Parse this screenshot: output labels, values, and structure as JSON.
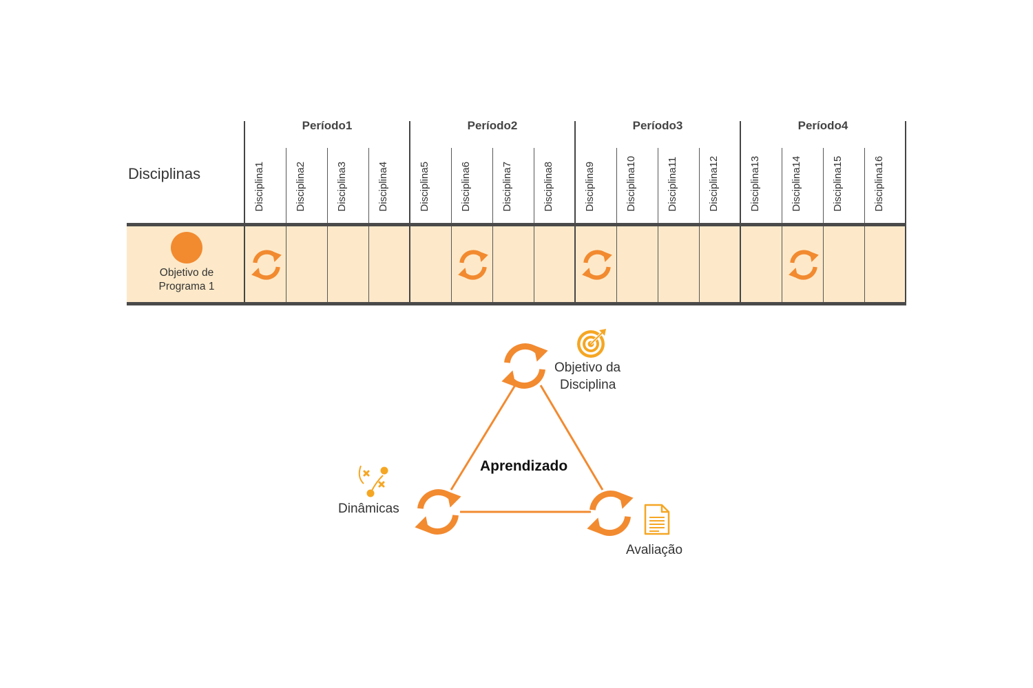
{
  "table": {
    "header_label": "Disciplinas",
    "periods": [
      "Período1",
      "Período2",
      "Período3",
      "Período4"
    ],
    "disciplines": [
      "Disciplina1",
      "Disciplina2",
      "Disciplina3",
      "Disciplina4",
      "Disciplina5",
      "Disciplina6",
      "Disciplina7",
      "Disciplina8",
      "Disciplina9",
      "Disciplina10",
      "Disciplina11",
      "Disciplina12",
      "Disciplina13",
      "Disciplina14",
      "Disciplina15",
      "Disciplina16"
    ],
    "row": {
      "label_line1": "Objetivo de",
      "label_line2": "Programa 1",
      "marked_disciplines": [
        "Disciplina1",
        "Disciplina6",
        "Disciplina9",
        "Disciplina14"
      ]
    }
  },
  "diagram": {
    "center_label": "Aprendizado",
    "top": {
      "label_line1": "Objetivo da",
      "label_line2": "Disciplina",
      "icon": "target-icon"
    },
    "left": {
      "label": "Dinâmicas",
      "icon": "strategy-icon"
    },
    "right": {
      "label": "Avaliação",
      "icon": "document-icon"
    }
  },
  "colors": {
    "accent": "#f28a30",
    "row_band": "#fde9c9",
    "icon_yellow": "#f5a623",
    "rule": "#4a4a4a"
  }
}
